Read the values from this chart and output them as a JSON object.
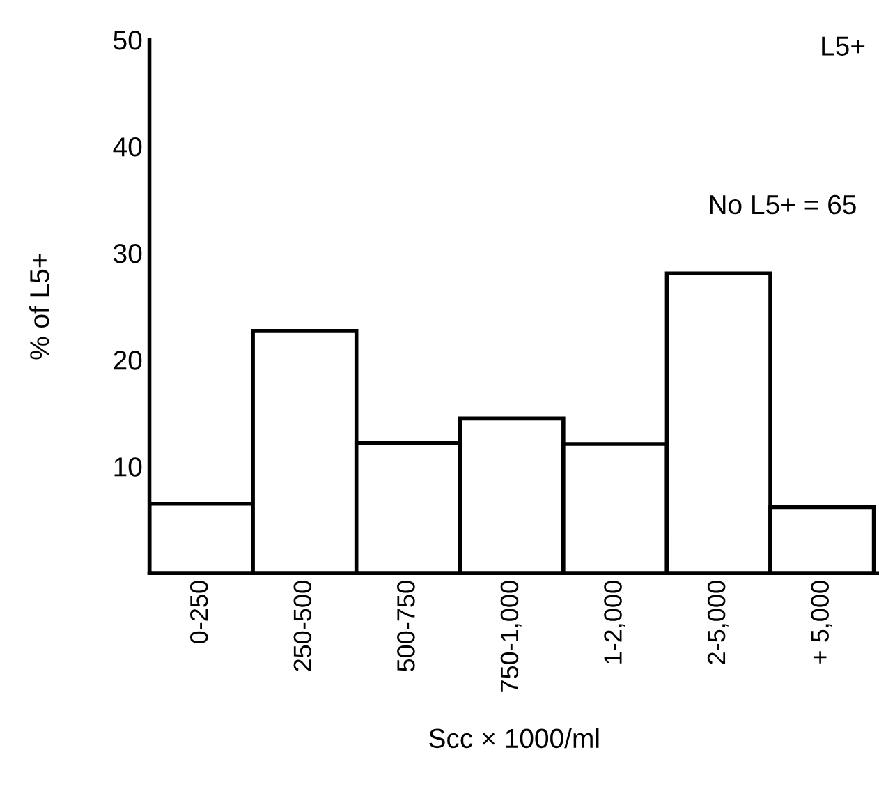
{
  "chart_data": {
    "type": "bar",
    "title": "L5+",
    "xlabel": "Scc × 1000/ml",
    "ylabel": "% of L5+",
    "categories": [
      "0-250",
      "250-500",
      "500-750",
      "750-1,000",
      "1-2,000",
      "2-5,000",
      "+ 5,000"
    ],
    "values": [
      6.5,
      22.7,
      12.2,
      14.5,
      12.1,
      28.1,
      6.2
    ],
    "color": "#ffffff",
    "ylim": [
      0,
      50
    ],
    "yticks": [
      10,
      20,
      30,
      40,
      50
    ],
    "grid": false,
    "annotations": [
      "No L5+ = 65"
    ]
  }
}
